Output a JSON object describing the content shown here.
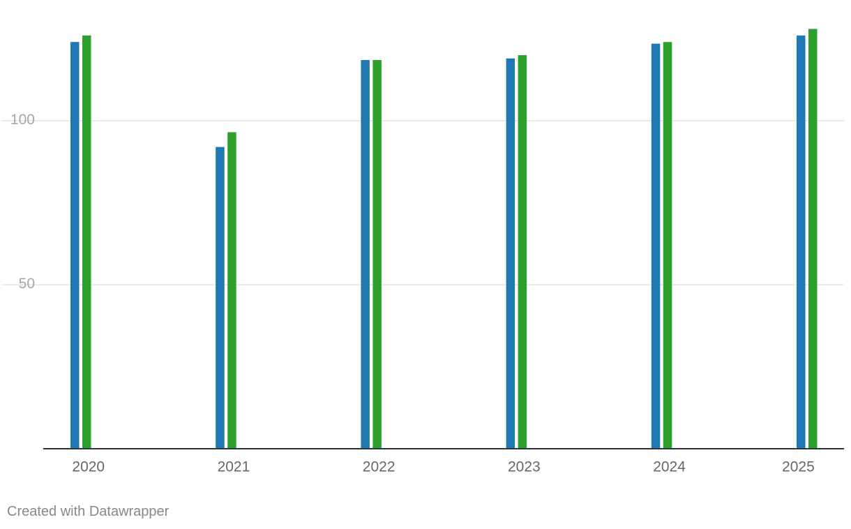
{
  "chart_data": {
    "type": "bar",
    "categories": [
      "2020",
      "2021",
      "2022",
      "2023",
      "2024",
      "2025"
    ],
    "series": [
      {
        "values": [
          124,
          92,
          118.5,
          119,
          123.5,
          126
        ]
      },
      {
        "values": [
          126,
          96.5,
          118.5,
          120,
          124,
          128
        ]
      }
    ],
    "y_ticks": [
      "50",
      "100"
    ],
    "ylim": [
      0,
      128
    ],
    "grid": true,
    "colors": [
      "#1f77b4",
      "#2ca02c"
    ]
  },
  "footer": {
    "credit": "Created with Datawrapper"
  }
}
